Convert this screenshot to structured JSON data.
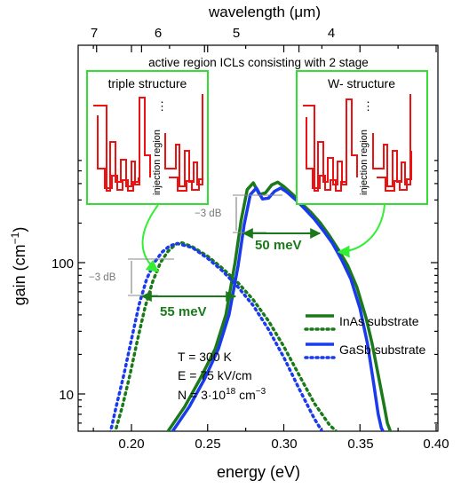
{
  "chart_data": {
    "type": "line",
    "xlabel": "energy (eV)",
    "ylabel": "gain (cm",
    "ylabel_sup": "−1",
    "ylabel_close": ")",
    "top_axis_label": "wavelength (μm)",
    "x_ticks": [
      "0.20",
      "0.25",
      "0.30",
      "0.35",
      "0.40"
    ],
    "x_tick_values": [
      0.2,
      0.25,
      0.3,
      0.35,
      0.4
    ],
    "y_ticks": [
      "10",
      "100"
    ],
    "y_tick_values": [
      10,
      100
    ],
    "top_ticks": [
      "7",
      "6",
      "5",
      "4"
    ],
    "top_tick_values": [
      7,
      6,
      5,
      4
    ],
    "xlim": [
      0.165,
      0.4
    ],
    "ylim": [
      5,
      700
    ],
    "y_scale": "log",
    "grid": false,
    "legend_placement": "right",
    "series": [
      {
        "name": "InAs substrate",
        "structure": "W-structure",
        "color": "#1a7a1a",
        "style": "solid",
        "x": [
          0.223,
          0.235,
          0.245,
          0.255,
          0.262,
          0.268,
          0.272,
          0.276,
          0.28,
          0.284,
          0.288,
          0.292,
          0.296,
          0.3,
          0.306,
          0.312,
          0.318,
          0.324,
          0.33,
          0.336,
          0.342,
          0.348,
          0.354,
          0.358,
          0.362,
          0.366,
          0.368,
          0.37,
          0.372
        ],
        "y": [
          5.0,
          8.0,
          13,
          22,
          40,
          100,
          210,
          360,
          405,
          330,
          340,
          390,
          410,
          380,
          330,
          280,
          240,
          200,
          160,
          125,
          95,
          65,
          38,
          24,
          14,
          8.0,
          6.0,
          5.2,
          5.0
        ]
      },
      {
        "name": "InAs substrate",
        "structure": "triple structure",
        "color": "#1a7a1a",
        "style": "dotted",
        "x": [
          0.189,
          0.194,
          0.199,
          0.204,
          0.209,
          0.214,
          0.219,
          0.224,
          0.229,
          0.233,
          0.24,
          0.25,
          0.26,
          0.27,
          0.28,
          0.29,
          0.3,
          0.31,
          0.32,
          0.33,
          0.336
        ],
        "y": [
          5.0,
          8.0,
          14,
          26,
          46,
          72,
          100,
          122,
          138,
          142,
          132,
          112,
          90,
          70,
          52,
          36,
          23,
          14,
          8.5,
          5.8,
          5.0
        ]
      },
      {
        "name": "GaSb substrate",
        "structure": "W-structure",
        "color": "#1a3aee",
        "style": "solid",
        "x": [
          0.226,
          0.238,
          0.248,
          0.257,
          0.264,
          0.27,
          0.274,
          0.278,
          0.282,
          0.286,
          0.29,
          0.294,
          0.298,
          0.302,
          0.308,
          0.314,
          0.32,
          0.326,
          0.332,
          0.338,
          0.344,
          0.35,
          0.355,
          0.359,
          0.362,
          0.364,
          0.366
        ],
        "y": [
          5.0,
          8.0,
          13,
          22,
          40,
          95,
          195,
          330,
          370,
          305,
          310,
          350,
          370,
          345,
          300,
          255,
          215,
          175,
          140,
          105,
          75,
          45,
          24,
          12,
          7.0,
          5.5,
          5.0
        ]
      },
      {
        "name": "GaSb substrate",
        "structure": "triple structure",
        "color": "#1a3aee",
        "style": "dotted",
        "x": [
          0.186,
          0.19,
          0.195,
          0.2,
          0.205,
          0.21,
          0.215,
          0.22,
          0.225,
          0.23,
          0.24,
          0.25,
          0.26,
          0.27,
          0.28,
          0.29,
          0.3,
          0.31,
          0.32,
          0.326
        ],
        "y": [
          5.0,
          8.0,
          14,
          26,
          48,
          75,
          100,
          120,
          134,
          140,
          130,
          108,
          86,
          65,
          47,
          31,
          19,
          11,
          6.5,
          5.0
        ]
      }
    ],
    "legend": [
      {
        "label": "InAs substrate",
        "color": "#1a7a1a"
      },
      {
        "label": "GaSb substrate",
        "color": "#1a3aee"
      }
    ],
    "annotations": {
      "inset_title": "active region ICLs consisting with 2 stage",
      "inset_left_title": "triple structure",
      "inset_right_title": "W- structure",
      "injection_label": "injection region",
      "minus3db_left": "−3 dB",
      "minus3db_right": "−3 dB",
      "width_55": "55 meV",
      "width_50": "50 meV",
      "cond_T": "T = 300 K",
      "cond_E": "E = 75 kV/cm",
      "cond_N_base": "N = 3·10",
      "cond_N_sup": "18",
      "cond_N_unit": " cm",
      "cond_N_unit_sup": "−3"
    },
    "colors": {
      "inset_border": "#33dd33",
      "band_lines": "#ee1111",
      "arrow_bright": "#33ee33",
      "fwhm_arrow": "#1a7a1a",
      "db_marker": "#888888"
    }
  }
}
